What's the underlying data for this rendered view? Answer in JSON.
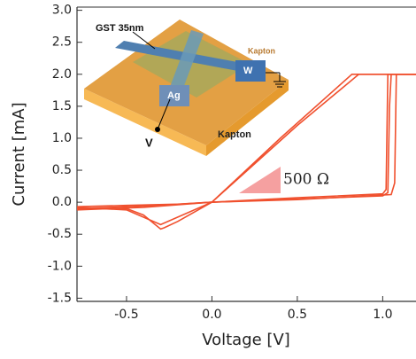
{
  "chart_data": {
    "type": "line",
    "x_label": "Voltage [V]",
    "y_label": "Current [mA]",
    "color": "#f0502e",
    "xlim": [
      -0.79,
      1.195
    ],
    "ylim": [
      -1.55,
      3.05
    ],
    "xticks": [
      {
        "value": -0.5,
        "label": "-0.5"
      },
      {
        "value": 0,
        "label": "0.0"
      },
      {
        "value": 0.5,
        "label": "0.5"
      },
      {
        "value": 1,
        "label": "1.0"
      }
    ],
    "yticks": [
      {
        "value": -1.5,
        "label": "-1.5"
      },
      {
        "value": -1,
        "label": "-1.0"
      },
      {
        "value": -0.5,
        "label": "-0.5"
      },
      {
        "value": 0,
        "label": "0.0"
      },
      {
        "value": 0.5,
        "label": "0.5"
      },
      {
        "value": 1,
        "label": "1.0"
      },
      {
        "value": 1.5,
        "label": "1.5"
      },
      {
        "value": 2,
        "label": "2.0"
      },
      {
        "value": 2.5,
        "label": "2.5"
      },
      {
        "value": 3,
        "label": "3.0"
      }
    ],
    "series": [
      {
        "x": [
          -0.79,
          -0.5,
          -0.2,
          0,
          0.5,
          1.0,
          1.03,
          1.04,
          1.05,
          1.195
        ],
        "values": [
          -0.07,
          -0.05,
          -0.03,
          0,
          0.05,
          0.1,
          0.15,
          1.5,
          2.0,
          2.0
        ]
      },
      {
        "x": [
          1.195,
          0.86,
          0.5,
          0,
          -0.2,
          -0.28,
          -0.3,
          -0.4,
          -0.5,
          -0.79
        ],
        "values": [
          2.0,
          2.0,
          1.2,
          0,
          -0.3,
          -0.4,
          -0.42,
          -0.2,
          -0.1,
          -0.1
        ]
      },
      {
        "x": [
          -0.79,
          -0.5,
          -0.3,
          0,
          0.5,
          1.0,
          1.02,
          1.03,
          1.195
        ],
        "values": [
          -0.1,
          -0.07,
          -0.05,
          0,
          0.07,
          0.13,
          0.2,
          2.0,
          2.0
        ]
      },
      {
        "x": [
          1.195,
          0.82,
          0.4,
          0,
          -0.3,
          -0.5,
          -0.79
        ],
        "values": [
          2.0,
          2.0,
          1.0,
          0,
          -0.35,
          -0.12,
          -0.08
        ]
      },
      {
        "x": [
          -0.79,
          -0.4,
          0,
          0.5,
          1.05,
          1.07,
          1.08,
          1.195
        ],
        "values": [
          -0.12,
          -0.08,
          0,
          0.04,
          0.12,
          0.3,
          2.0,
          2.0
        ]
      }
    ],
    "annotation": "500 Ω",
    "inset_labels": [
      "GST 35nm",
      "W",
      "Ag",
      "V",
      "Kapton",
      "Kapton"
    ]
  }
}
